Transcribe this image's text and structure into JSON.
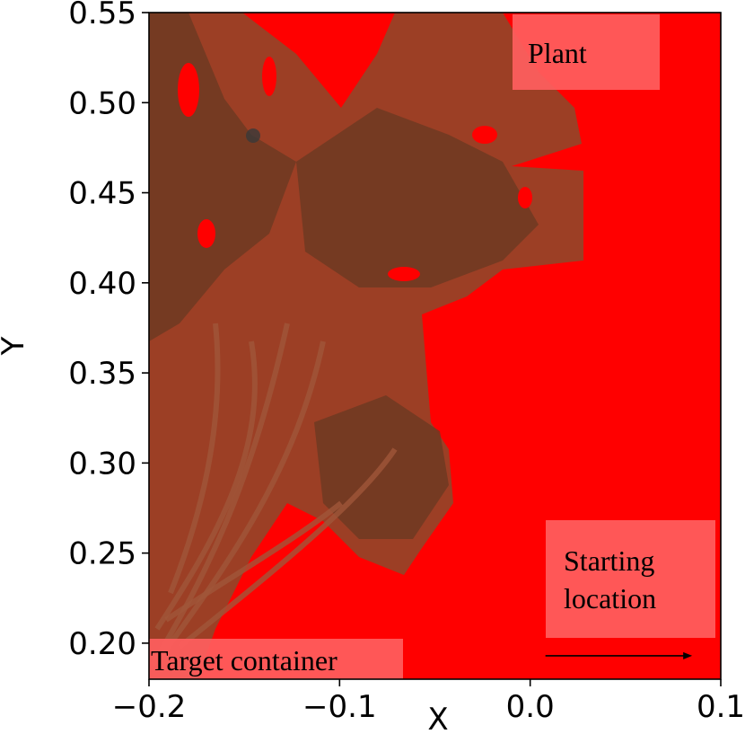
{
  "chart_data": {
    "type": "heatmap",
    "title": "",
    "xlabel": "X",
    "ylabel": "Y",
    "xlim": [
      -0.2,
      0.1
    ],
    "ylim": [
      0.18,
      0.55
    ],
    "x_ticks": [
      -0.2,
      -0.1,
      0.0,
      0.1
    ],
    "x_tick_labels": [
      "−0.2",
      "−0.1",
      "0.0",
      "0.1"
    ],
    "y_ticks": [
      0.2,
      0.25,
      0.3,
      0.35,
      0.4,
      0.45,
      0.5,
      0.55
    ],
    "y_tick_labels": [
      "0.20",
      "0.25",
      "0.30",
      "0.35",
      "0.40",
      "0.45",
      "0.50",
      "0.55"
    ],
    "grid": false,
    "background_color": "#ff0000",
    "foreground_color": "#8b4a2b",
    "foreground_description": "photograph of leafy plant overlaid on red field",
    "annotations": [
      {
        "text": "Plant",
        "x": 0.0,
        "y": 0.535
      },
      {
        "text": "Starting location",
        "lines": [
          "Starting",
          "location"
        ],
        "x": 0.008,
        "y": 0.236
      },
      {
        "text": "Target container",
        "x": -0.2,
        "y": 0.19
      }
    ],
    "arrow": {
      "from": [
        0.008,
        0.193
      ],
      "to": [
        0.085,
        0.193
      ]
    }
  },
  "colors": {
    "label_box": "#ff5e5e",
    "plant": "#8b4a2b",
    "plant_dark": "#6e3a22",
    "red": "#ff0000"
  }
}
